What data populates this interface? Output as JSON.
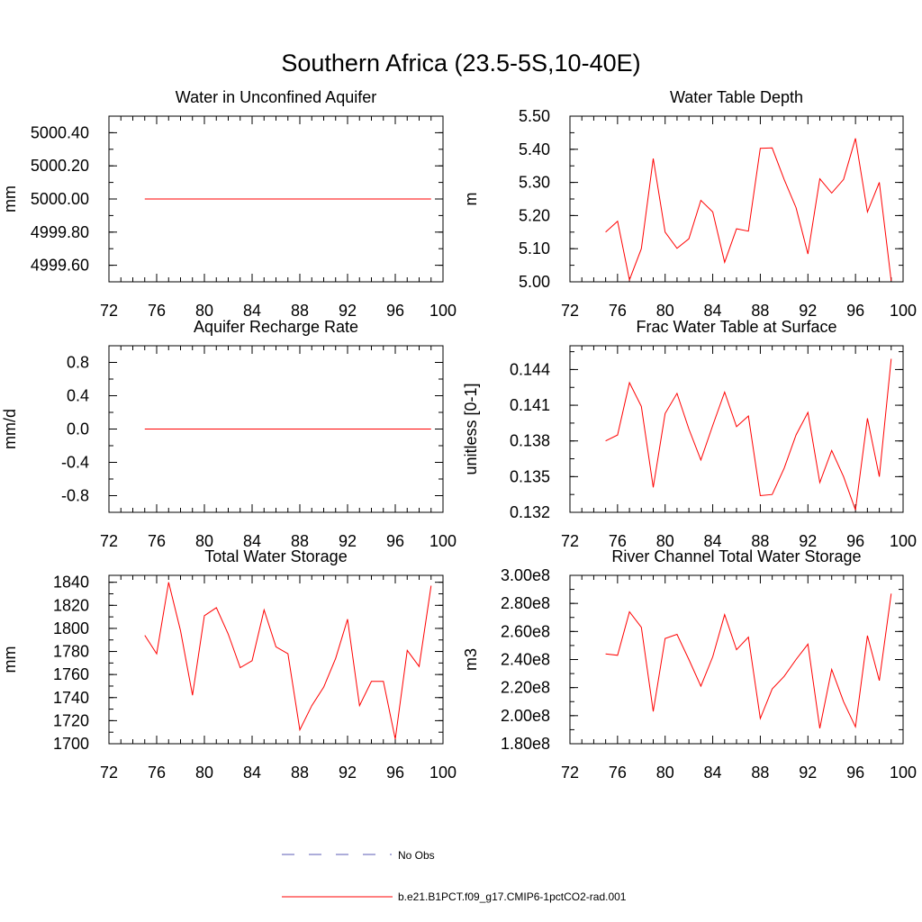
{
  "page_title": "Southern Africa (23.5-5S,10-40E)",
  "colors": {
    "series": "#ff0000",
    "obs": "#5b5bb4",
    "axis": "#000000"
  },
  "legend": {
    "obs_label": "No Obs",
    "model_label": "b.e21.B1PCT.f09_g17.CMIP6-1pctCO2-rad.001"
  },
  "chart_data": [
    {
      "type": "line",
      "title": "Water in Unconfined Aquifer",
      "ylabel": "mm",
      "xlim": [
        72,
        100
      ],
      "ylim": [
        4999.5,
        5000.5
      ],
      "xticks": [
        72,
        76,
        80,
        84,
        88,
        92,
        96,
        100
      ],
      "yticks": [
        4999.6,
        4999.8,
        5000.0,
        5000.2,
        5000.4
      ],
      "ytick_labels": [
        "4999.60",
        "4999.80",
        "5000.00",
        "5000.20",
        "5000.40"
      ],
      "x": [
        75,
        76,
        77,
        78,
        79,
        80,
        81,
        82,
        83,
        84,
        85,
        86,
        87,
        88,
        89,
        90,
        91,
        92,
        93,
        94,
        95,
        96,
        97,
        98,
        99
      ],
      "series": [
        {
          "name": "b.e21.B1PCT.f09_g17.CMIP6-1pctCO2-rad.001",
          "values": [
            5000,
            5000,
            5000,
            5000,
            5000,
            5000,
            5000,
            5000,
            5000,
            5000,
            5000,
            5000,
            5000,
            5000,
            5000,
            5000,
            5000,
            5000,
            5000,
            5000,
            5000,
            5000,
            5000,
            5000,
            5000
          ]
        }
      ]
    },
    {
      "type": "line",
      "title": "Water Table Depth",
      "ylabel": "m",
      "xlim": [
        72,
        100
      ],
      "ylim": [
        5.0,
        5.5
      ],
      "xticks": [
        72,
        76,
        80,
        84,
        88,
        92,
        96,
        100
      ],
      "yticks": [
        5.0,
        5.1,
        5.2,
        5.3,
        5.4,
        5.5
      ],
      "ytick_labels": [
        "5.00",
        "5.10",
        "5.20",
        "5.30",
        "5.40",
        "5.50"
      ],
      "x": [
        75,
        76,
        77,
        78,
        79,
        80,
        81,
        82,
        83,
        84,
        85,
        86,
        87,
        88,
        89,
        90,
        91,
        92,
        93,
        94,
        95,
        96,
        97,
        98,
        99
      ],
      "series": [
        {
          "name": "b.e21.B1PCT.f09_g17.CMIP6-1pctCO2-rad.001",
          "values": [
            5.15,
            5.183,
            5.006,
            5.1,
            5.372,
            5.15,
            5.101,
            5.13,
            5.246,
            5.211,
            5.059,
            5.16,
            5.153,
            5.403,
            5.404,
            5.309,
            5.224,
            5.084,
            5.311,
            5.268,
            5.309,
            5.433,
            5.211,
            5.3,
            5.003
          ]
        }
      ]
    },
    {
      "type": "line",
      "title": "Aquifer Recharge Rate",
      "ylabel": "mm/d",
      "xlim": [
        72,
        100
      ],
      "ylim": [
        -1.0,
        1.0
      ],
      "xticks": [
        72,
        76,
        80,
        84,
        88,
        92,
        96,
        100
      ],
      "yticks": [
        -0.8,
        -0.4,
        0.0,
        0.4,
        0.8
      ],
      "ytick_labels": [
        "-0.8",
        "-0.4",
        "0.0",
        "0.4",
        "0.8"
      ],
      "x": [
        75,
        76,
        77,
        78,
        79,
        80,
        81,
        82,
        83,
        84,
        85,
        86,
        87,
        88,
        89,
        90,
        91,
        92,
        93,
        94,
        95,
        96,
        97,
        98,
        99
      ],
      "series": [
        {
          "name": "b.e21.B1PCT.f09_g17.CMIP6-1pctCO2-rad.001",
          "values": [
            0,
            0,
            0,
            0,
            0,
            0,
            0,
            0,
            0,
            0,
            0,
            0,
            0,
            0,
            0,
            0,
            0,
            0,
            0,
            0,
            0,
            0,
            0,
            0,
            0
          ]
        }
      ]
    },
    {
      "type": "line",
      "title": "Frac Water Table at Surface",
      "ylabel": "unitless [0-1]",
      "xlim": [
        72,
        100
      ],
      "ylim": [
        0.132,
        0.146
      ],
      "xticks": [
        72,
        76,
        80,
        84,
        88,
        92,
        96,
        100
      ],
      "yticks": [
        0.132,
        0.135,
        0.138,
        0.141,
        0.144
      ],
      "ytick_labels": [
        "0.132",
        "0.135",
        "0.138",
        "0.141",
        "0.144"
      ],
      "x": [
        75,
        76,
        77,
        78,
        79,
        80,
        81,
        82,
        83,
        84,
        85,
        86,
        87,
        88,
        89,
        90,
        91,
        92,
        93,
        94,
        95,
        96,
        97,
        98,
        99
      ],
      "series": [
        {
          "name": "b.e21.B1PCT.f09_g17.CMIP6-1pctCO2-rad.001",
          "values": [
            0.138,
            0.1385,
            0.1429,
            0.1409,
            0.1341,
            0.1403,
            0.142,
            0.139,
            0.1364,
            0.1393,
            0.1421,
            0.1392,
            0.1401,
            0.1334,
            0.1335,
            0.1357,
            0.1385,
            0.1404,
            0.1345,
            0.1372,
            0.135,
            0.1322,
            0.1399,
            0.135,
            0.1449
          ]
        }
      ]
    },
    {
      "type": "line",
      "title": "Total Water Storage",
      "ylabel": "mm",
      "xlim": [
        72,
        100
      ],
      "ylim": [
        1700,
        1846
      ],
      "xticks": [
        72,
        76,
        80,
        84,
        88,
        92,
        96,
        100
      ],
      "yticks": [
        1700,
        1720,
        1740,
        1760,
        1780,
        1800,
        1820,
        1840
      ],
      "ytick_labels": [
        "1700",
        "1720",
        "1740",
        "1760",
        "1780",
        "1800",
        "1820",
        "1840"
      ],
      "x": [
        75,
        76,
        77,
        78,
        79,
        80,
        81,
        82,
        83,
        84,
        85,
        86,
        87,
        88,
        89,
        90,
        91,
        92,
        93,
        94,
        95,
        96,
        97,
        98,
        99
      ],
      "series": [
        {
          "name": "b.e21.B1PCT.f09_g17.CMIP6-1pctCO2-rad.001",
          "values": [
            1794,
            1778,
            1840,
            1798,
            1742,
            1811,
            1818,
            1795,
            1766,
            1772,
            1816,
            1784,
            1778,
            1712,
            1733,
            1749,
            1774,
            1808,
            1733,
            1754,
            1754,
            1704,
            1781,
            1767,
            1837
          ]
        }
      ]
    },
    {
      "type": "line",
      "title": "River Channel Total Water Storage",
      "ylabel": "m3",
      "xlim": [
        72,
        100
      ],
      "ylim": [
        180000000,
        300000000
      ],
      "xticks": [
        72,
        76,
        80,
        84,
        88,
        92,
        96,
        100
      ],
      "yticks": [
        180000000,
        200000000,
        220000000,
        240000000,
        260000000,
        280000000,
        300000000
      ],
      "ytick_labels": [
        "1.80e8",
        "2.00e8",
        "2.20e8",
        "2.40e8",
        "2.60e8",
        "2.80e8",
        "3.00e8"
      ],
      "x": [
        75,
        76,
        77,
        78,
        79,
        80,
        81,
        82,
        83,
        84,
        85,
        86,
        87,
        88,
        89,
        90,
        91,
        92,
        93,
        94,
        95,
        96,
        97,
        98,
        99
      ],
      "series": [
        {
          "name": "b.e21.B1PCT.f09_g17.CMIP6-1pctCO2-rad.001",
          "values": [
            244000000,
            243000000,
            274000000,
            263000000,
            203000000,
            255000000,
            258000000,
            240000000,
            221000000,
            242000000,
            272000000,
            247000000,
            256000000,
            198000000,
            219000000,
            228000000,
            240000000,
            251000000,
            191000000,
            233000000,
            210000000,
            192000000,
            257000000,
            225000000,
            287000000
          ]
        }
      ]
    }
  ]
}
